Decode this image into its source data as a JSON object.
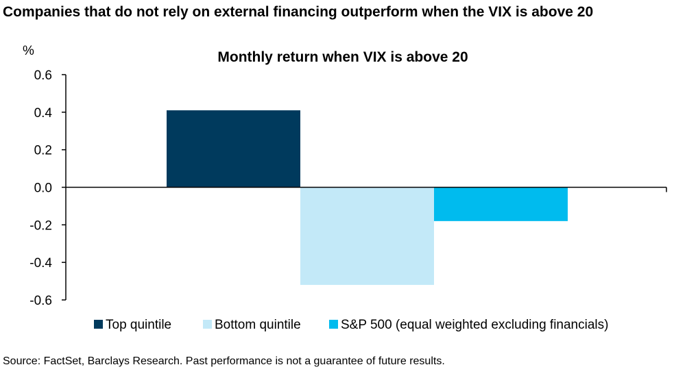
{
  "headline": "Companies that do not rely  on external financing outperform when the VIX is above 20",
  "source": "Source: FactSet, Barclays Research. Past performance is not a guarantee of future results.",
  "chart_data": {
    "type": "bar",
    "title": "Monthly return when VIX is above 20",
    "ylabel": "%",
    "xlabel": "",
    "ylim": [
      -0.6,
      0.6
    ],
    "yticks": [
      0.6,
      0.4,
      0.2,
      0.0,
      -0.2,
      -0.4,
      -0.6
    ],
    "ytick_labels": [
      "0.6",
      "0.4",
      "0.2",
      "0.0",
      "-0.2",
      "-0.4",
      "-0.6"
    ],
    "grid": false,
    "legend_position": "bottom",
    "series": [
      {
        "name": "Top quintile",
        "value": 0.41,
        "color": "#003A5D"
      },
      {
        "name": "Bottom quintile",
        "value": -0.52,
        "color": "#C3E9F8"
      },
      {
        "name": "S&P 500 (equal weighted excluding financials)",
        "value": -0.18,
        "color": "#00BBEE"
      }
    ]
  }
}
